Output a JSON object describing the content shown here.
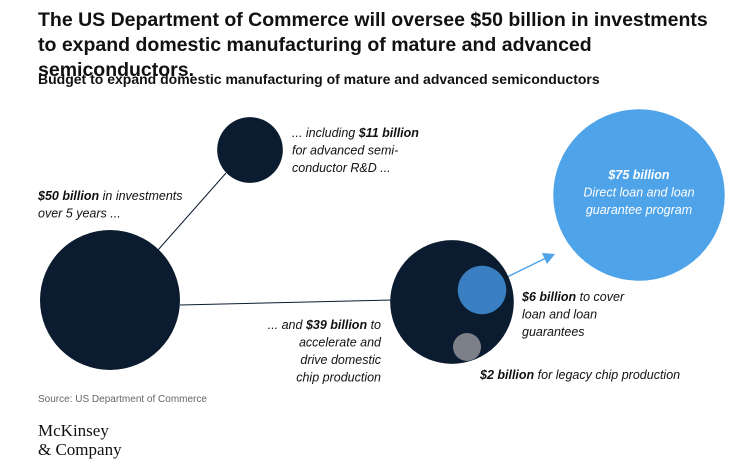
{
  "title": "The US Department of Commerce will oversee $50 billion in investments to expand domestic manufacturing of mature and advanced semiconductors.",
  "subtitle": "Budget to expand domestic manufacturing of mature and advanced semiconductors",
  "nodes": [
    {
      "value": 50,
      "color": "#0b1c30",
      "lines": [
        [
          {
            "t": "$50 billion",
            "b": true
          },
          {
            "t": " in investments"
          }
        ],
        [
          {
            "t": "over 5 years ..."
          }
        ]
      ]
    },
    {
      "value": 11,
      "color": "#0b1c30",
      "lines": [
        [
          {
            "t": "... including "
          },
          {
            "t": "$11 billion",
            "b": true
          }
        ],
        [
          {
            "t": "for advanced semi-"
          }
        ],
        [
          {
            "t": "conductor R&D ..."
          }
        ]
      ]
    },
    {
      "value": 39,
      "color": "#0b1c30",
      "lines": [
        [
          {
            "t": "... and "
          },
          {
            "t": "$39 billion",
            "b": true
          },
          {
            "t": " to"
          }
        ],
        [
          {
            "t": "accelerate and"
          }
        ],
        [
          {
            "t": "drive domestic"
          }
        ],
        [
          {
            "t": "chip production"
          }
        ]
      ]
    },
    {
      "value": 75,
      "color": "#4fa3e8",
      "lines": [
        [
          {
            "t": "$75 billion",
            "b": true
          }
        ],
        [
          {
            "t": "Direct loan and loan"
          }
        ],
        [
          {
            "t": "guarantee program"
          }
        ]
      ]
    },
    {
      "value": 6,
      "color": "#3a7fc1",
      "lines": [
        [
          {
            "t": "$6 billion",
            "b": true
          },
          {
            "t": " to cover"
          }
        ],
        [
          {
            "t": "loan and loan"
          }
        ],
        [
          {
            "t": "guarantees"
          }
        ]
      ]
    },
    {
      "value": 2,
      "color": "#7c8189",
      "lines": [
        [
          {
            "t": "$2 billion",
            "b": true
          },
          {
            "t": " for legacy chip production"
          }
        ]
      ]
    }
  ],
  "source": "Source: US Department of Commerce",
  "logo": [
    "McKinsey",
    "& Company"
  ]
}
